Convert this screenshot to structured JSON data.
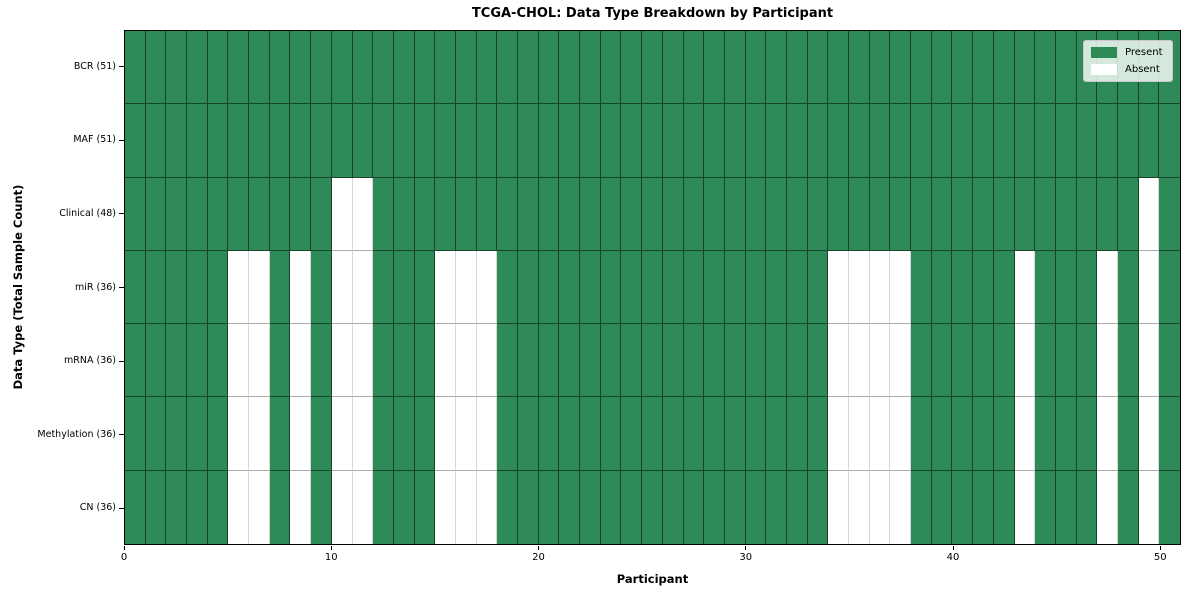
{
  "title": "TCGA-CHOL: Data Type Breakdown by Participant",
  "chart_data": {
    "type": "heatmap",
    "title": "TCGA-CHOL: Data Type Breakdown by Participant",
    "xlabel": "Participant",
    "ylabel": "Data Type (Total Sample Count)",
    "n_participants": 51,
    "x_ticks": [
      0,
      10,
      20,
      30,
      40,
      50
    ],
    "grid": true,
    "legend_position": "upper right",
    "legend": [
      {
        "label": "Present",
        "color": "#2e8b57"
      },
      {
        "label": "Absent",
        "color": "#ffffff"
      }
    ],
    "colors": {
      "present": "#2e8b57",
      "absent": "#ffffff"
    },
    "rows": [
      {
        "label": "BCR (51)",
        "total": 51,
        "absent": []
      },
      {
        "label": "MAF (51)",
        "total": 51,
        "absent": []
      },
      {
        "label": "Clinical (48)",
        "total": 48,
        "absent": [
          10,
          11,
          49
        ]
      },
      {
        "label": "miR (36)",
        "total": 36,
        "absent": [
          5,
          6,
          8,
          10,
          11,
          15,
          16,
          17,
          34,
          35,
          36,
          37,
          43,
          47,
          49
        ]
      },
      {
        "label": "mRNA (36)",
        "total": 36,
        "absent": [
          5,
          6,
          8,
          10,
          11,
          15,
          16,
          17,
          34,
          35,
          36,
          37,
          43,
          47,
          49
        ]
      },
      {
        "label": "Methylation (36)",
        "total": 36,
        "absent": [
          5,
          6,
          8,
          10,
          11,
          15,
          16,
          17,
          34,
          35,
          36,
          37,
          43,
          47,
          49
        ]
      },
      {
        "label": "CN (36)",
        "total": 36,
        "absent": [
          5,
          6,
          8,
          10,
          11,
          15,
          16,
          17,
          34,
          35,
          36,
          37,
          43,
          47,
          49
        ]
      }
    ]
  }
}
